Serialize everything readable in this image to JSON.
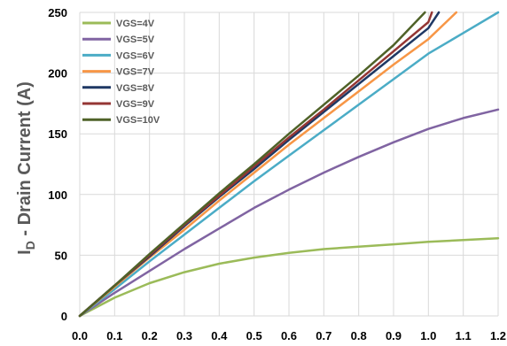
{
  "chart_data": {
    "type": "line",
    "title": "",
    "xlabel": "",
    "ylabel": {
      "main": "I",
      "sub": "D",
      "rest": " - Drain Current (A)"
    },
    "xlim": [
      0,
      1.2
    ],
    "ylim": [
      0,
      250
    ],
    "x_ticks": [
      "0.0",
      "0.1",
      "0.2",
      "0.3",
      "0.4",
      "0.5",
      "0.6",
      "0.7",
      "0.8",
      "0.9",
      "1.0",
      "1.1",
      "1.2"
    ],
    "y_ticks": [
      "0",
      "50",
      "100",
      "150",
      "200",
      "250"
    ],
    "grid": true,
    "legend_position": "top-left",
    "series": [
      {
        "name": "VGS=4V",
        "color": "#9BBB59",
        "x": [
          0,
          0.1,
          0.2,
          0.3,
          0.4,
          0.5,
          0.6,
          0.7,
          0.8,
          0.9,
          1.0,
          1.1,
          1.2
        ],
        "y": [
          0,
          15,
          27,
          36,
          43,
          48,
          52,
          55,
          57,
          59,
          61,
          62.5,
          64
        ]
      },
      {
        "name": "VGS=5V",
        "color": "#8064A2",
        "x": [
          0,
          0.1,
          0.2,
          0.3,
          0.4,
          0.5,
          0.6,
          0.7,
          0.8,
          0.9,
          1.0,
          1.1,
          1.2
        ],
        "y": [
          0,
          19,
          37,
          55,
          72,
          89,
          104,
          118,
          131,
          143,
          154,
          163,
          170
        ]
      },
      {
        "name": "VGS=6V",
        "color": "#4BACC6",
        "x": [
          0,
          0.1,
          0.2,
          0.3,
          0.4,
          0.5,
          0.6,
          0.7,
          0.8,
          0.9,
          1.0,
          1.1,
          1.2
        ],
        "y": [
          0,
          22,
          45,
          67,
          89,
          111,
          132,
          153,
          174,
          195,
          216,
          233,
          250
        ]
      },
      {
        "name": "VGS=7V",
        "color": "#F79646",
        "x": [
          0,
          0.1,
          0.2,
          0.3,
          0.4,
          0.5,
          0.6,
          0.7,
          0.8,
          0.9,
          1.0,
          1.08
        ],
        "y": [
          0,
          24,
          48,
          71,
          95,
          118,
          141,
          163,
          185,
          207,
          228,
          250
        ]
      },
      {
        "name": "VGS=8V",
        "color": "#1F3864",
        "x": [
          0,
          0.1,
          0.2,
          0.3,
          0.4,
          0.5,
          0.6,
          0.7,
          0.8,
          0.9,
          1.0,
          1.03
        ],
        "y": [
          0,
          25,
          49,
          74,
          98,
          121,
          145,
          168,
          191,
          214,
          237,
          250
        ]
      },
      {
        "name": "VGS=9V",
        "color": "#943634",
        "x": [
          0,
          0.1,
          0.2,
          0.3,
          0.4,
          0.5,
          0.6,
          0.7,
          0.8,
          0.9,
          1.0,
          1.01
        ],
        "y": [
          0,
          25,
          50,
          75,
          99,
          123,
          147,
          170,
          194,
          218,
          242,
          250
        ]
      },
      {
        "name": "VGS=10V",
        "color": "#4F6228",
        "x": [
          0,
          0.1,
          0.2,
          0.3,
          0.4,
          0.5,
          0.6,
          0.7,
          0.8,
          0.9,
          0.99
        ],
        "y": [
          0,
          25,
          51,
          76,
          101,
          125,
          150,
          174,
          198,
          223,
          250
        ]
      }
    ]
  }
}
